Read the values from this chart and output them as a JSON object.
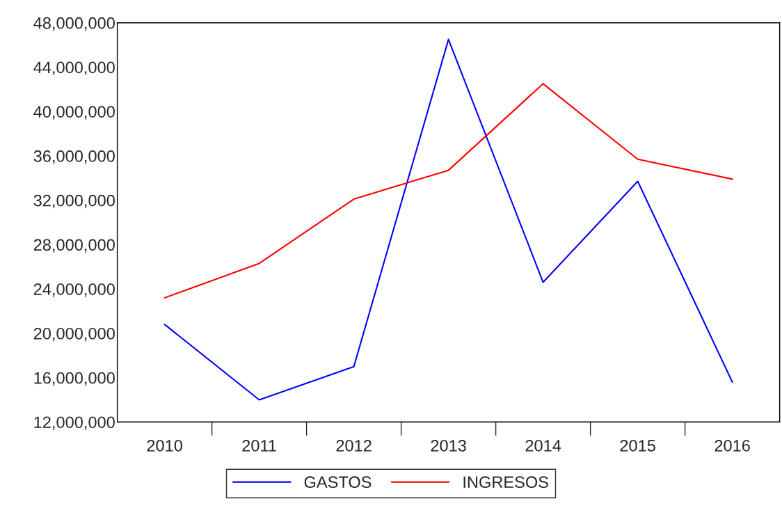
{
  "chart_data": {
    "type": "line",
    "categories": [
      "2010",
      "2011",
      "2012",
      "2013",
      "2014",
      "2015",
      "2016"
    ],
    "series": [
      {
        "name": "GASTOS",
        "color": "#0000ff",
        "values": [
          20800000,
          14000000,
          17000000,
          46500000,
          24600000,
          33700000,
          15600000
        ]
      },
      {
        "name": "INGRESOS",
        "color": "#ff0000",
        "values": [
          23200000,
          26300000,
          32100000,
          34700000,
          42500000,
          35700000,
          33900000
        ]
      }
    ],
    "ylim": [
      12000000,
      48000000
    ],
    "yticks": [
      {
        "value": 12000000,
        "label": "12,000,000"
      },
      {
        "value": 16000000,
        "label": "16,000,000"
      },
      {
        "value": 20000000,
        "label": "20,000,000"
      },
      {
        "value": 24000000,
        "label": "24,000,000"
      },
      {
        "value": 28000000,
        "label": "28,000,000"
      },
      {
        "value": 32000000,
        "label": "32,000,000"
      },
      {
        "value": 36000000,
        "label": "36,000,000"
      },
      {
        "value": 40000000,
        "label": "40,000,000"
      },
      {
        "value": 44000000,
        "label": "44,000,000"
      },
      {
        "value": 48000000,
        "label": "48,000,000"
      }
    ],
    "grid": false,
    "legend": "bottom",
    "marker": "none",
    "line_style": "solid"
  }
}
